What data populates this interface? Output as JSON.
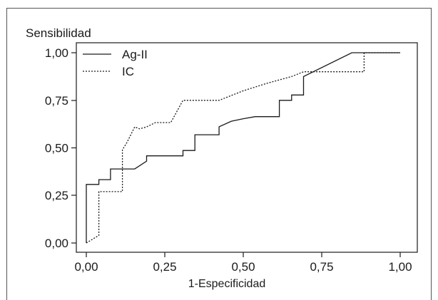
{
  "chart_data": {
    "type": "line",
    "xlabel": "1-Especificidad",
    "ylabel": "Sensibilidad",
    "xlim": [
      0,
      1
    ],
    "ylim": [
      0,
      1
    ],
    "x_ticks": [
      "0,00",
      "0,25",
      "0,50",
      "0,75",
      "1,00"
    ],
    "y_ticks": [
      "0,00",
      "0,25",
      "0,50",
      "0,75",
      "1,00"
    ],
    "grid": false,
    "legend_position": "top-left",
    "series": [
      {
        "name": "Ag-II",
        "line_style": "solid",
        "color": "#1a1a1a",
        "x": [
          0,
          0,
          0.04,
          0.04,
          0.077,
          0.077,
          0.154,
          0.192,
          0.192,
          0.308,
          0.308,
          0.346,
          0.346,
          0.423,
          0.423,
          0.462,
          0.5,
          0.538,
          0.615,
          0.615,
          0.654,
          0.654,
          0.692,
          0.692,
          0.846,
          1
        ],
        "y": [
          0,
          0.308,
          0.308,
          0.333,
          0.333,
          0.389,
          0.389,
          0.43,
          0.458,
          0.458,
          0.486,
          0.486,
          0.569,
          0.569,
          0.611,
          0.64,
          0.653,
          0.664,
          0.664,
          0.75,
          0.75,
          0.778,
          0.778,
          0.875,
          1,
          1
        ]
      },
      {
        "name": "IC",
        "line_style": "dotted",
        "color": "#1a1a1a",
        "x": [
          0,
          0.04,
          0.04,
          0.115,
          0.115,
          0.13,
          0.154,
          0.17,
          0.192,
          0.22,
          0.269,
          0.308,
          0.423,
          0.5,
          0.577,
          0.654,
          0.692,
          0.885,
          0.885,
          1
        ],
        "y": [
          0,
          0.04,
          0.27,
          0.27,
          0.49,
          0.53,
          0.61,
          0.6,
          0.61,
          0.633,
          0.633,
          0.75,
          0.75,
          0.8,
          0.84,
          0.875,
          0.9,
          0.9,
          1,
          1
        ]
      }
    ]
  }
}
